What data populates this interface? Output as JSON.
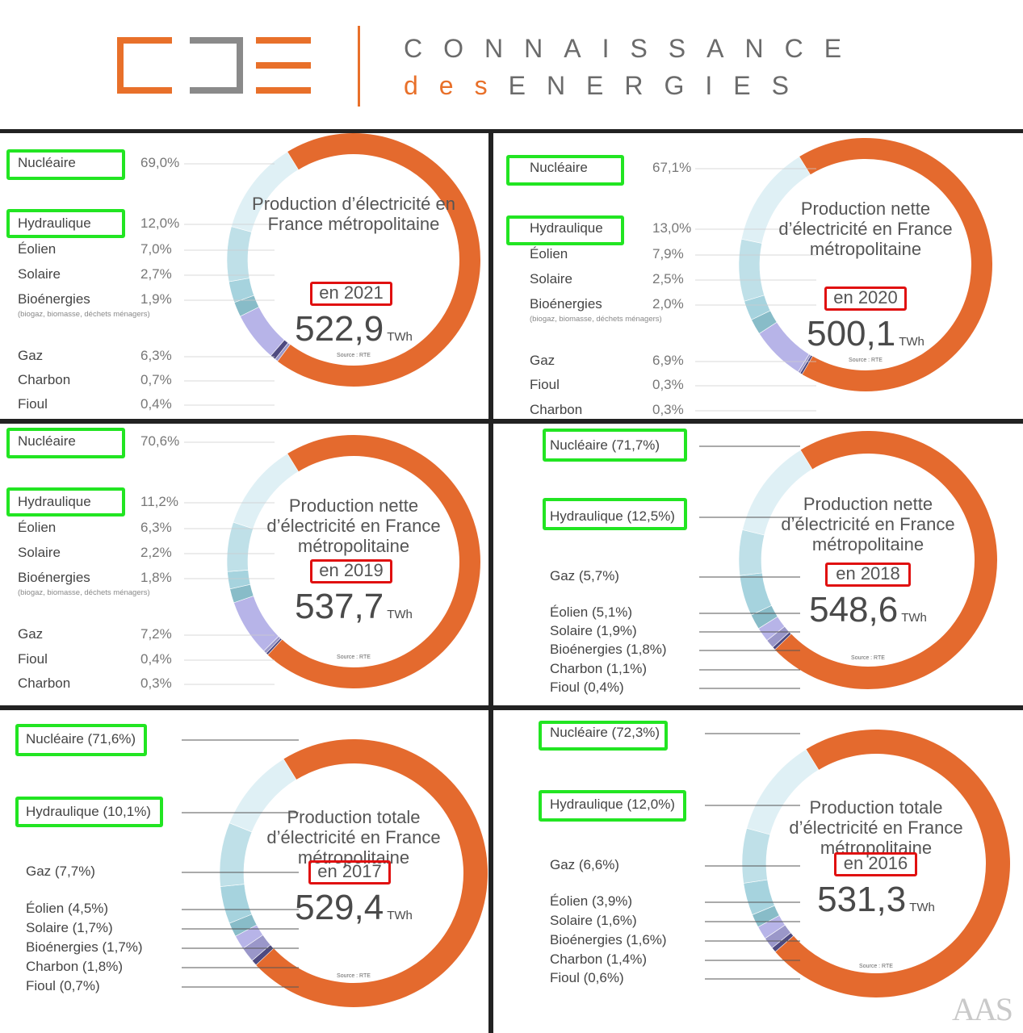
{
  "header": {
    "brand_line1": "CONNAISSANCE",
    "brand_des": "des",
    "brand_line2": "ENERGIES",
    "logo_colors": {
      "c": "#e8702a",
      "d": "#8a8a8a",
      "e": "#e8702a"
    }
  },
  "colors": {
    "nucleaire": "#e46a2e",
    "hydraulique": "#dff0f5",
    "eolien": "#bfe0e8",
    "solaire": "#a6d3de",
    "bioenergies": "#88bcc8",
    "gaz": "#b7b4e8",
    "charbon": "#4e4a80",
    "fioul": "#9a97c9",
    "highlight_green": "#22e522",
    "highlight_red": "#e01010"
  },
  "watermark": "AAS",
  "chart_data": [
    {
      "type": "pie",
      "title": "Production d’électricité en France métropolitaine",
      "year_label": "en 2021",
      "total": "522,9",
      "unit": "TWh",
      "source": "Source : RTE",
      "slices": [
        {
          "name": "Nucléaire",
          "value": 69.0,
          "label": "69,0%",
          "color": "nucleaire"
        },
        {
          "name": "Hydraulique",
          "value": 12.0,
          "label": "12,0%",
          "color": "hydraulique"
        },
        {
          "name": "Éolien",
          "value": 7.0,
          "label": "7,0%",
          "color": "eolien"
        },
        {
          "name": "Solaire",
          "value": 2.7,
          "label": "2,7%",
          "color": "solaire"
        },
        {
          "name": "Bioénergies",
          "value": 1.9,
          "label": "1,9%",
          "color": "bioenergies",
          "note": "(biogaz, biomasse, déchets ménagers)"
        },
        {
          "name": "Gaz",
          "value": 6.3,
          "label": "6,3%",
          "color": "gaz"
        },
        {
          "name": "Charbon",
          "value": 0.7,
          "label": "0,7%",
          "color": "charbon"
        },
        {
          "name": "Fioul",
          "value": 0.4,
          "label": "0,4%",
          "color": "fioul"
        }
      ]
    },
    {
      "type": "pie",
      "title": "Production nette d’électricité en France métropolitaine",
      "year_label": "en 2020",
      "total": "500,1",
      "unit": "TWh",
      "source": "Source : RTE",
      "slices": [
        {
          "name": "Nucléaire",
          "value": 67.1,
          "label": "67,1%",
          "color": "nucleaire"
        },
        {
          "name": "Hydraulique",
          "value": 13.0,
          "label": "13,0%",
          "color": "hydraulique"
        },
        {
          "name": "Éolien",
          "value": 7.9,
          "label": "7,9%",
          "color": "eolien"
        },
        {
          "name": "Solaire",
          "value": 2.5,
          "label": "2,5%",
          "color": "solaire"
        },
        {
          "name": "Bioénergies",
          "value": 2.0,
          "label": "2,0%",
          "color": "bioenergies",
          "note": "(biogaz, biomasse, déchets ménagers)"
        },
        {
          "name": "Gaz",
          "value": 6.9,
          "label": "6,9%",
          "color": "gaz"
        },
        {
          "name": "Fioul",
          "value": 0.3,
          "label": "0,3%",
          "color": "fioul"
        },
        {
          "name": "Charbon",
          "value": 0.3,
          "label": "0,3%",
          "color": "charbon"
        }
      ]
    },
    {
      "type": "pie",
      "title": "Production nette d’électricité en France métropolitaine",
      "year_label": "en 2019",
      "total": "537,7",
      "unit": "TWh",
      "source": "Source : RTE",
      "slices": [
        {
          "name": "Nucléaire",
          "value": 70.6,
          "label": "70,6%",
          "color": "nucleaire"
        },
        {
          "name": "Hydraulique",
          "value": 11.2,
          "label": "11,2%",
          "color": "hydraulique"
        },
        {
          "name": "Éolien",
          "value": 6.3,
          "label": "6,3%",
          "color": "eolien"
        },
        {
          "name": "Solaire",
          "value": 2.2,
          "label": "2,2%",
          "color": "solaire"
        },
        {
          "name": "Bioénergies",
          "value": 1.8,
          "label": "1,8%",
          "color": "bioenergies",
          "note": "(biogaz, biomasse, déchets ménagers)"
        },
        {
          "name": "Gaz",
          "value": 7.2,
          "label": "7,2%",
          "color": "gaz"
        },
        {
          "name": "Fioul",
          "value": 0.4,
          "label": "0,4%",
          "color": "fioul"
        },
        {
          "name": "Charbon",
          "value": 0.3,
          "label": "0,3%",
          "color": "charbon"
        }
      ]
    },
    {
      "type": "pie",
      "title": "Production nette d’électricité en France métropolitaine",
      "year_label": "en 2018",
      "total": "548,6",
      "unit": "TWh",
      "source": "Source : RTE",
      "slices": [
        {
          "name": "Nucléaire",
          "value": 71.7,
          "label": "Nucléaire (71,7%)",
          "color": "nucleaire"
        },
        {
          "name": "Hydraulique",
          "value": 12.5,
          "label": "Hydraulique (12,5%)",
          "color": "hydraulique"
        },
        {
          "name": "Gaz",
          "value": 5.7,
          "label": "Gaz (5,7%)",
          "color": "eolien"
        },
        {
          "name": "Éolien",
          "value": 5.1,
          "label": "Éolien (5,1%)",
          "color": "solaire"
        },
        {
          "name": "Solaire",
          "value": 1.9,
          "label": "Solaire (1,9%)",
          "color": "bioenergies"
        },
        {
          "name": "Bioénergies",
          "value": 1.8,
          "label": "Bioénergies (1,8%)",
          "color": "gaz"
        },
        {
          "name": "Charbon",
          "value": 1.1,
          "label": "Charbon (1,1%)",
          "color": "fioul"
        },
        {
          "name": "Fioul",
          "value": 0.4,
          "label": "Fioul (0,4%)",
          "color": "charbon"
        }
      ]
    },
    {
      "type": "pie",
      "title": "Production totale d’électricité en France métropolitaine",
      "year_label": "en 2017",
      "total": "529,4",
      "unit": "TWh",
      "source": "Source : RTE",
      "slices": [
        {
          "name": "Nucléaire",
          "value": 71.6,
          "label": "Nucléaire (71,6%)",
          "color": "nucleaire"
        },
        {
          "name": "Hydraulique",
          "value": 10.1,
          "label": "Hydraulique (10,1%)",
          "color": "hydraulique"
        },
        {
          "name": "Gaz",
          "value": 7.7,
          "label": "Gaz (7,7%)",
          "color": "eolien"
        },
        {
          "name": "Éolien",
          "value": 4.5,
          "label": "Éolien (4,5%)",
          "color": "solaire"
        },
        {
          "name": "Solaire",
          "value": 1.7,
          "label": "Solaire (1,7%)",
          "color": "bioenergies"
        },
        {
          "name": "Bioénergies",
          "value": 1.7,
          "label": "Bioénergies (1,7%)",
          "color": "gaz"
        },
        {
          "name": "Charbon",
          "value": 1.8,
          "label": "Charbon (1,8%)",
          "color": "fioul"
        },
        {
          "name": "Fioul",
          "value": 0.7,
          "label": "Fioul (0,7%)",
          "color": "charbon"
        }
      ]
    },
    {
      "type": "pie",
      "title": "Production totale d’électricité en France métropolitaine",
      "year_label": "en 2016",
      "total": "531,3",
      "unit": "TWh",
      "source": "Source : RTE",
      "slices": [
        {
          "name": "Nucléaire",
          "value": 72.3,
          "label": "Nucléaire (72,3%)",
          "color": "nucleaire"
        },
        {
          "name": "Hydraulique",
          "value": 12.0,
          "label": "Hydraulique (12,0%)",
          "color": "hydraulique"
        },
        {
          "name": "Gaz",
          "value": 6.6,
          "label": "Gaz (6,6%)",
          "color": "eolien"
        },
        {
          "name": "Éolien",
          "value": 3.9,
          "label": "Éolien (3,9%)",
          "color": "solaire"
        },
        {
          "name": "Solaire",
          "value": 1.6,
          "label": "Solaire (1,6%)",
          "color": "bioenergies"
        },
        {
          "name": "Bioénergies",
          "value": 1.6,
          "label": "Bioénergies (1,6%)",
          "color": "gaz"
        },
        {
          "name": "Charbon",
          "value": 1.4,
          "label": "Charbon (1,4%)",
          "color": "fioul"
        },
        {
          "name": "Fioul",
          "value": 0.6,
          "label": "Fioul (0,6%)",
          "color": "charbon"
        }
      ]
    }
  ]
}
